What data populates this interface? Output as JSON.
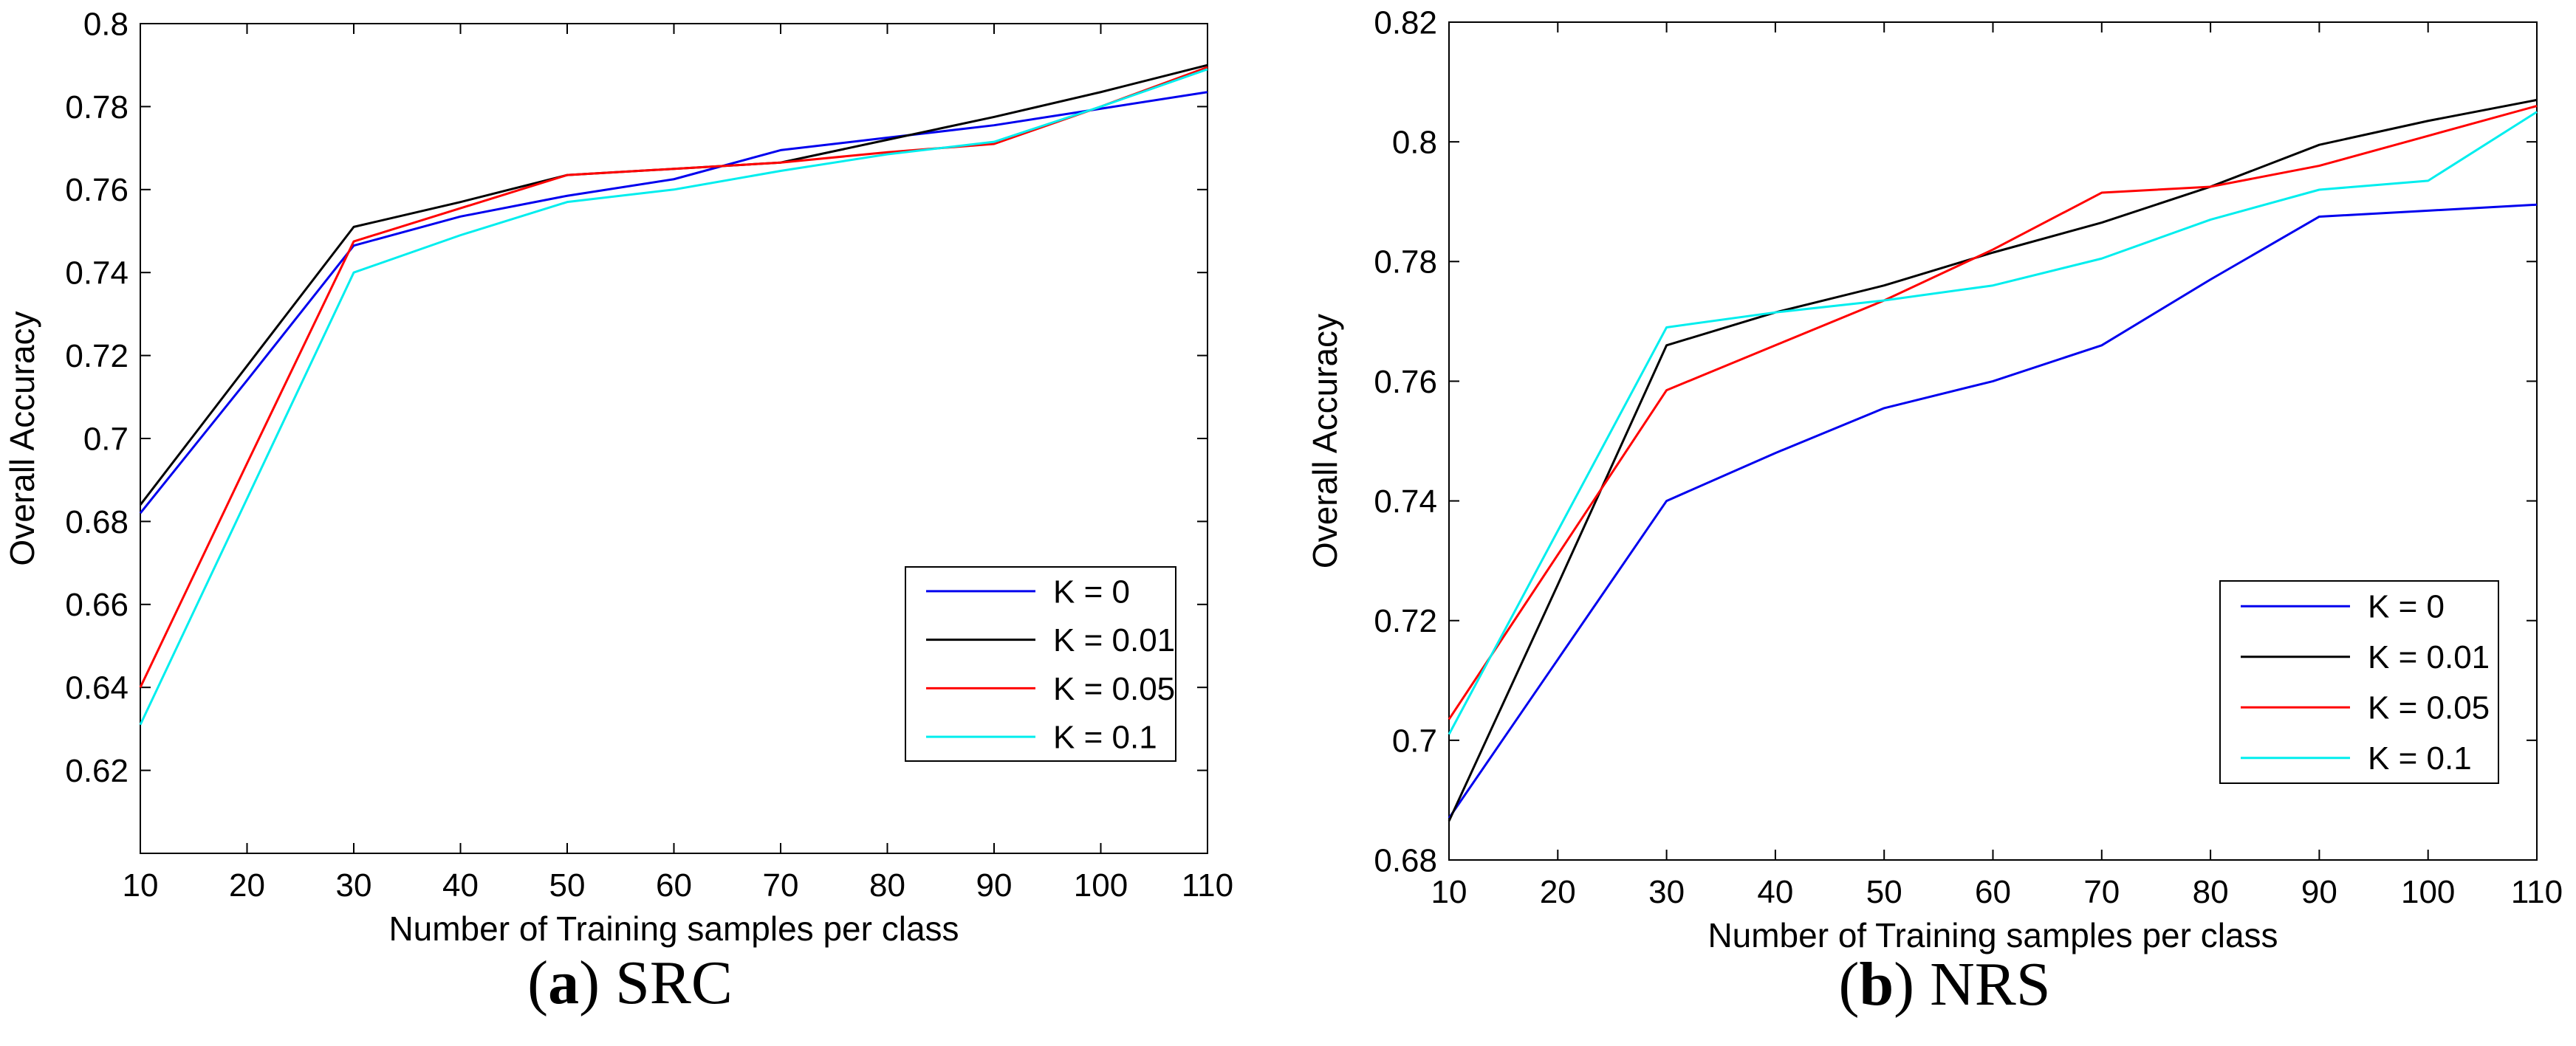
{
  "figure": {
    "background_color": "#ffffff",
    "axis_color": "#000000"
  },
  "chart_data": [
    {
      "id": "src",
      "type": "line",
      "title": "(a) SRC",
      "caption": {
        "open": "(",
        "letter": "a",
        "close": ")",
        "title": "SRC"
      },
      "xlabel": "Number of Training samples per class",
      "ylabel": "Overall Accuracy",
      "xlim": [
        10,
        110
      ],
      "ylim": [
        0.6,
        0.8
      ],
      "xticks": [
        10,
        20,
        30,
        40,
        50,
        60,
        70,
        80,
        90,
        100,
        110
      ],
      "yticks": [
        0.62,
        0.64,
        0.66,
        0.68,
        0.7,
        0.72,
        0.74,
        0.76,
        0.78,
        0.8
      ],
      "grid": false,
      "legend_position": "inset lower right",
      "x": [
        10,
        20,
        30,
        40,
        50,
        60,
        70,
        80,
        90,
        100,
        110
      ],
      "series": [
        {
          "name": "K = 0",
          "color": "#0000ee",
          "values": [
            0.682,
            0.714,
            0.7465,
            0.7535,
            0.7585,
            0.7625,
            0.7695,
            0.7725,
            0.7755,
            0.7795,
            0.7835
          ]
        },
        {
          "name": "K = 0.01",
          "color": "#000000",
          "values": [
            0.684,
            0.7175,
            0.751,
            0.757,
            0.7635,
            0.765,
            0.7665,
            0.772,
            0.7775,
            0.7835,
            0.79
          ]
        },
        {
          "name": "K = 0.05",
          "color": "#ff0000",
          "values": [
            0.64,
            0.694,
            0.7475,
            0.7555,
            0.7635,
            0.765,
            0.7665,
            0.769,
            0.771,
            0.78,
            0.7895
          ]
        },
        {
          "name": "K = 0.1",
          "color": "#00eeee",
          "values": [
            0.631,
            0.6855,
            0.74,
            0.749,
            0.757,
            0.76,
            0.7645,
            0.7685,
            0.7715,
            0.78,
            0.789
          ]
        }
      ]
    },
    {
      "id": "nrs",
      "type": "line",
      "title": "(b) NRS",
      "caption": {
        "open": "(",
        "letter": "b",
        "close": ")",
        "title": "NRS"
      },
      "xlabel": "Number of Training samples per class",
      "ylabel": "Overall Accuracy",
      "xlim": [
        10,
        110
      ],
      "ylim": [
        0.68,
        0.82
      ],
      "xticks": [
        10,
        20,
        30,
        40,
        50,
        60,
        70,
        80,
        90,
        100,
        110
      ],
      "yticks": [
        0.68,
        0.7,
        0.72,
        0.74,
        0.76,
        0.78,
        0.8,
        0.82
      ],
      "grid": false,
      "legend_position": "inset lower right",
      "x": [
        10,
        20,
        30,
        40,
        50,
        60,
        70,
        80,
        90,
        100,
        110
      ],
      "series": [
        {
          "name": "K = 0",
          "color": "#0000ee",
          "values": [
            0.687,
            0.7135,
            0.74,
            0.748,
            0.7555,
            0.76,
            0.766,
            0.777,
            0.7875,
            0.7885,
            0.7895
          ]
        },
        {
          "name": "K = 0.01",
          "color": "#000000",
          "values": [
            0.6865,
            0.726,
            0.766,
            0.7715,
            0.776,
            0.7815,
            0.7865,
            0.7925,
            0.7995,
            0.8035,
            0.807
          ]
        },
        {
          "name": "K = 0.05",
          "color": "#ff0000",
          "values": [
            0.7035,
            0.731,
            0.7585,
            0.766,
            0.7735,
            0.782,
            0.7915,
            0.7925,
            0.796,
            0.801,
            0.806
          ]
        },
        {
          "name": "K = 0.1",
          "color": "#00eeee",
          "values": [
            0.701,
            0.735,
            0.769,
            0.7715,
            0.7735,
            0.776,
            0.7805,
            0.787,
            0.792,
            0.7935,
            0.805
          ]
        }
      ]
    }
  ]
}
